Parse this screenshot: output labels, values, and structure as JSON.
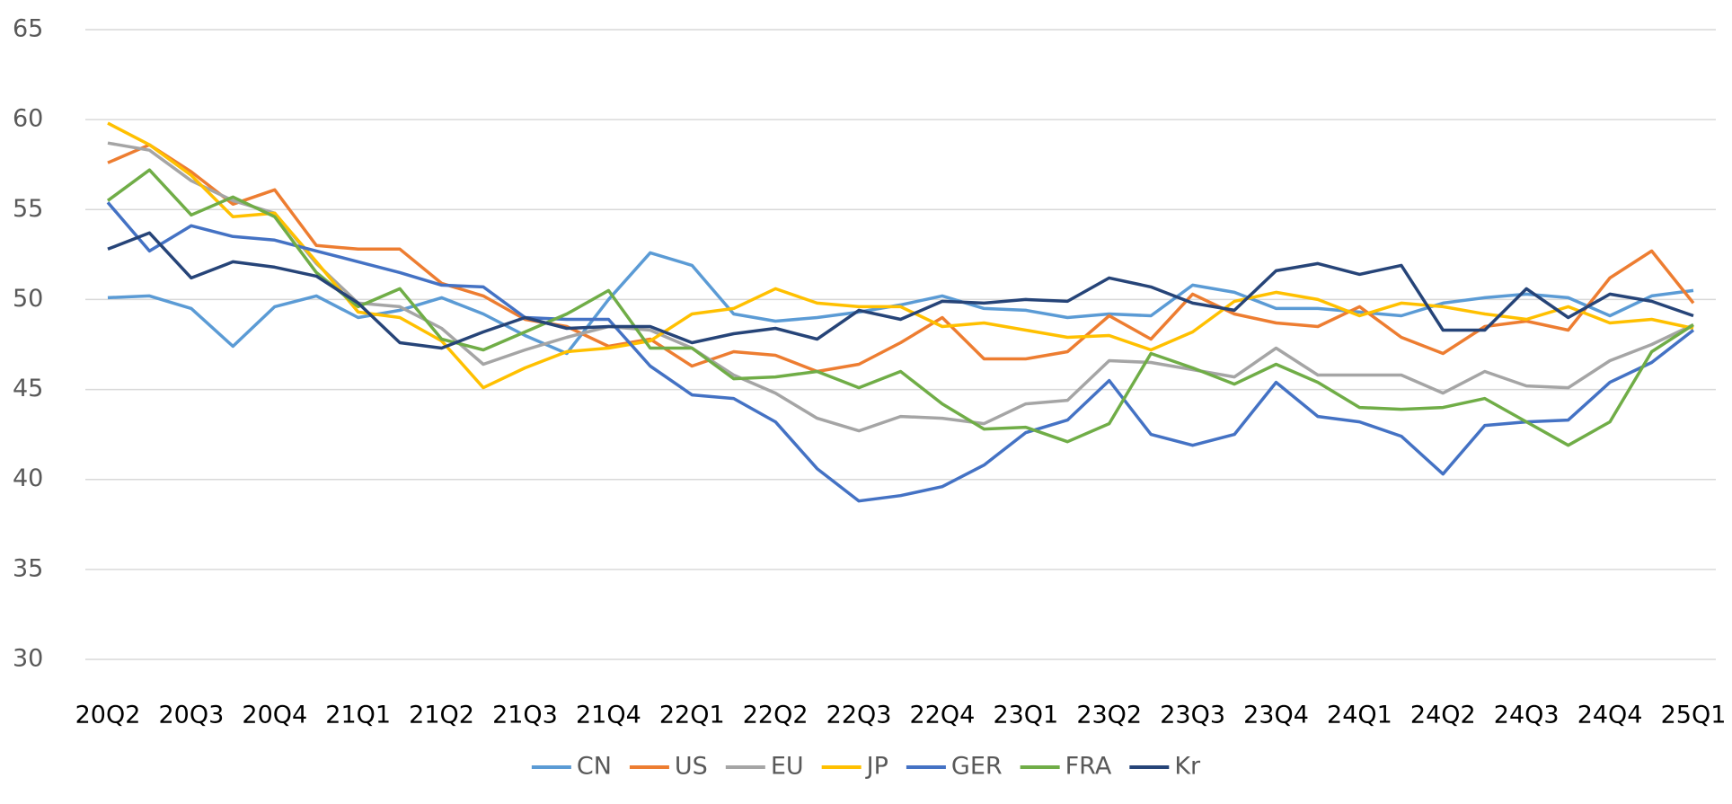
{
  "chart_data": {
    "type": "line",
    "categories": [
      "20Q2",
      null,
      "20Q3",
      null,
      "20Q4",
      null,
      "21Q1",
      null,
      "21Q2",
      null,
      "21Q3",
      null,
      "21Q4",
      null,
      "22Q1",
      null,
      "22Q2",
      null,
      "22Q3",
      null,
      "22Q4",
      null,
      "23Q1",
      null,
      "23Q2",
      null,
      "23Q3",
      null,
      "23Q4",
      null,
      "24Q1",
      null,
      "24Q2",
      null,
      "24Q3",
      null,
      "24Q4",
      null,
      "25Q1"
    ],
    "series": [
      {
        "name": "CN",
        "color": "#5b9bd5",
        "values": [
          50.1,
          50.2,
          49.5,
          47.4,
          49.6,
          50.2,
          49.0,
          49.4,
          50.1,
          49.2,
          48.0,
          47.0,
          50.0,
          52.6,
          51.9,
          49.2,
          48.8,
          49.0,
          49.3,
          49.7,
          50.2,
          49.5,
          49.4,
          49.0,
          49.2,
          49.1,
          50.8,
          50.4,
          49.5,
          49.5,
          49.3,
          49.1,
          49.8,
          50.1,
          50.3,
          50.1,
          49.1,
          50.2,
          50.5
        ]
      },
      {
        "name": "US",
        "color": "#ed7d31",
        "values": [
          57.6,
          58.6,
          57.1,
          55.3,
          56.1,
          53.0,
          52.8,
          52.8,
          50.9,
          50.2,
          48.9,
          48.5,
          47.4,
          47.8,
          46.3,
          47.1,
          46.9,
          46.0,
          46.4,
          47.6,
          49.0,
          46.7,
          46.7,
          47.1,
          49.1,
          47.8,
          50.3,
          49.2,
          48.7,
          48.5,
          49.6,
          47.9,
          47.0,
          48.5,
          48.8,
          48.3,
          51.2,
          52.7,
          49.8
        ]
      },
      {
        "name": "EU",
        "color": "#a5a5a5",
        "values": [
          58.7,
          58.3,
          56.6,
          55.5,
          54.8,
          52.0,
          49.8,
          49.6,
          48.4,
          46.4,
          47.2,
          47.9,
          48.5,
          48.3,
          47.3,
          45.8,
          44.8,
          43.4,
          42.7,
          43.5,
          43.4,
          43.1,
          44.2,
          44.4,
          46.6,
          46.5,
          46.1,
          45.7,
          47.3,
          45.8,
          45.8,
          45.8,
          44.8,
          46.0,
          45.2,
          45.1,
          46.6,
          47.5,
          48.6
        ]
      },
      {
        "name": "JP",
        "color": "#ffc000",
        "values": [
          59.8,
          58.6,
          56.9,
          54.6,
          54.8,
          52.1,
          49.3,
          49.0,
          47.7,
          45.1,
          46.2,
          47.1,
          47.3,
          47.7,
          49.2,
          49.5,
          50.6,
          49.8,
          49.6,
          49.6,
          48.5,
          48.7,
          48.3,
          47.9,
          48.0,
          47.2,
          48.2,
          49.9,
          50.4,
          50.0,
          49.1,
          49.8,
          49.6,
          49.2,
          48.9,
          49.6,
          48.7,
          48.9,
          48.4
        ]
      },
      {
        "name": "GER",
        "color": "#4472c4",
        "values": [
          55.4,
          52.7,
          54.1,
          53.5,
          53.3,
          52.7,
          52.1,
          51.5,
          50.8,
          50.7,
          49.0,
          48.9,
          48.9,
          46.3,
          44.7,
          44.5,
          43.2,
          40.6,
          38.8,
          39.1,
          39.6,
          40.8,
          42.6,
          43.3,
          45.5,
          42.5,
          41.9,
          42.5,
          45.4,
          43.5,
          43.2,
          42.4,
          40.3,
          43.0,
          43.2,
          43.3,
          45.4,
          46.5,
          48.3
        ]
      },
      {
        "name": "FRA",
        "color": "#70ad47",
        "values": [
          55.5,
          57.2,
          54.7,
          55.7,
          54.6,
          51.5,
          49.6,
          50.6,
          47.8,
          47.2,
          48.2,
          49.2,
          50.5,
          47.3,
          47.3,
          45.6,
          45.7,
          46.0,
          45.1,
          46.0,
          44.2,
          42.8,
          42.9,
          42.1,
          43.1,
          47.0,
          46.2,
          45.3,
          46.4,
          45.4,
          44.0,
          43.9,
          44.0,
          44.5,
          43.2,
          41.9,
          43.2,
          47.1,
          48.6
        ]
      },
      {
        "name": "Kr",
        "color": "#264478",
        "values": [
          52.8,
          53.7,
          51.2,
          52.1,
          51.8,
          51.3,
          49.8,
          47.6,
          47.3,
          48.2,
          49.0,
          48.4,
          48.5,
          48.5,
          47.6,
          48.1,
          48.4,
          47.8,
          49.4,
          48.9,
          49.9,
          49.8,
          50.0,
          49.9,
          51.2,
          50.7,
          49.8,
          49.4,
          51.6,
          52.0,
          51.4,
          51.9,
          48.3,
          48.3,
          50.6,
          49.0,
          50.3,
          49.9,
          49.1
        ]
      }
    ],
    "ylim": [
      30,
      65
    ],
    "yticks": [
      30,
      35,
      40,
      45,
      50,
      55,
      60,
      65
    ],
    "grid": true,
    "legend": "bottom"
  }
}
